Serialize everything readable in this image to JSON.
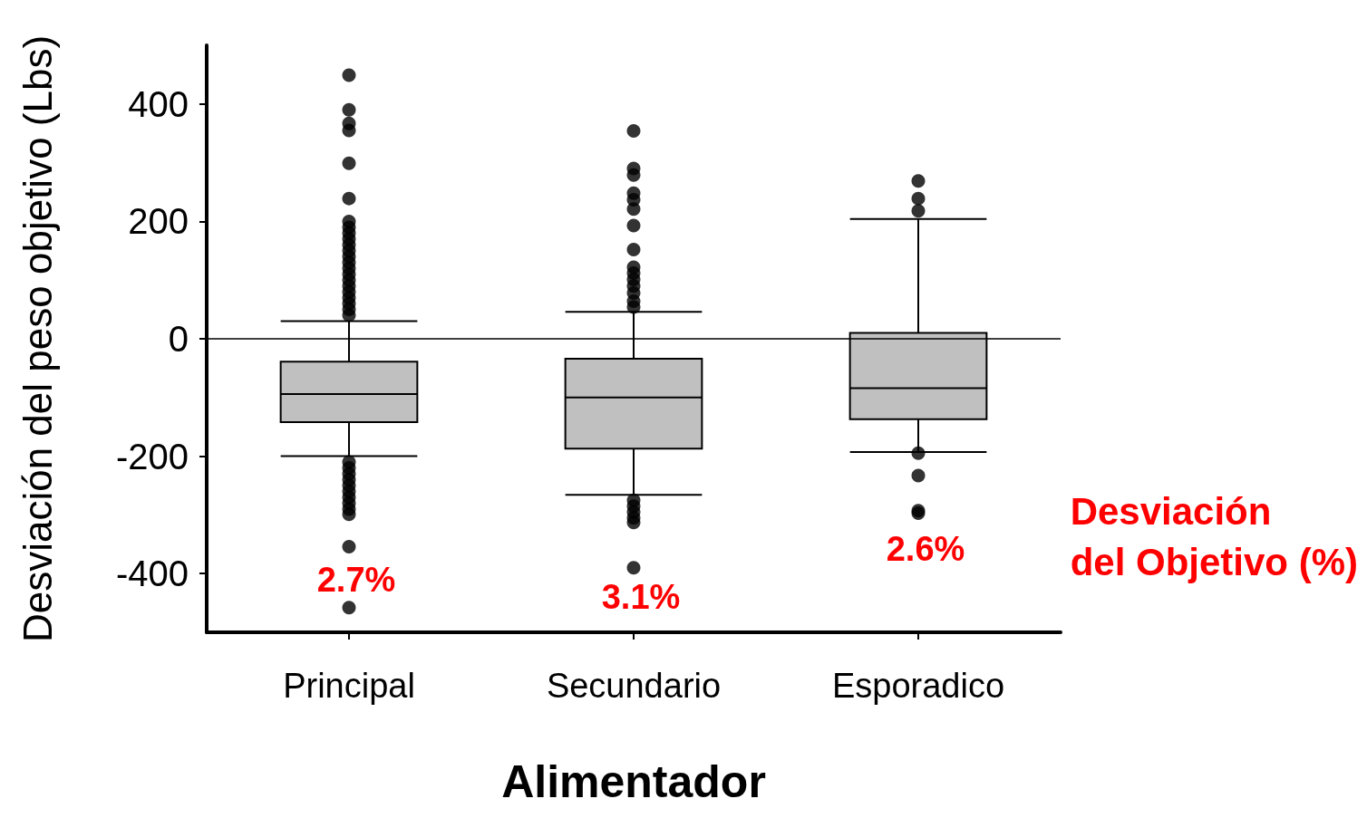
{
  "chart_data": {
    "type": "box",
    "xlabel": "Alimentador",
    "ylabel": "Desviación del peso objetivo (Lbs)",
    "categories": [
      "Principal",
      "Secundario",
      "Esporadico"
    ],
    "color": "#c0c0c0",
    "boxes": [
      {
        "low": -200,
        "q1": -142,
        "median": -94,
        "q3": -39,
        "high": 30,
        "outliers": [
          449,
          390,
          367,
          355,
          299,
          239,
          200,
          190,
          180,
          170,
          160,
          150,
          140,
          130,
          120,
          110,
          100,
          90,
          80,
          70,
          60,
          50,
          40,
          -210,
          -220,
          -230,
          -240,
          -250,
          -260,
          -270,
          -280,
          -290,
          -299,
          -354,
          -458
        ]
      },
      {
        "low": -266,
        "q1": -187,
        "median": -100,
        "q3": -34,
        "high": 46,
        "outliers": [
          354,
          290,
          279,
          248,
          237,
          221,
          193,
          152,
          122,
          112,
          101,
          90,
          78,
          64,
          54,
          -275,
          -285,
          -295,
          -305,
          -313,
          -390
        ]
      },
      {
        "low": -193,
        "q1": -137,
        "median": -84,
        "q3": 10,
        "high": 204,
        "outliers": [
          269,
          239,
          218,
          -195,
          -233,
          -293,
          -297
        ]
      }
    ],
    "ylim": [
      -500,
      500
    ],
    "yticks": [
      -400,
      -200,
      0,
      200,
      400
    ],
    "grid": false,
    "ref_lines": [
      {
        "axis": "y",
        "value": 0,
        "color": "#000000"
      }
    ],
    "annotations": [
      "2.7%",
      "3.1%",
      "2.6%",
      "Desviación del Objetivo (%)"
    ]
  }
}
